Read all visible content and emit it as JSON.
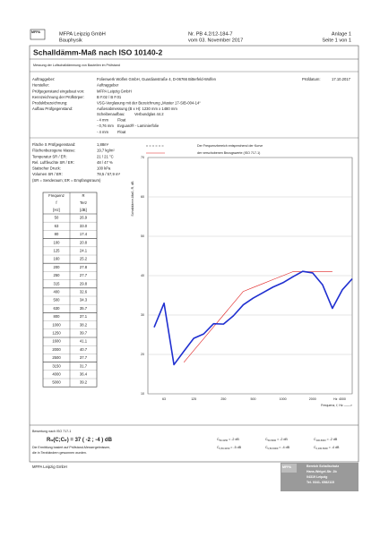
{
  "header": {
    "logo": "MFPA",
    "company": "MFPA Leipzig GmbH",
    "department": "Bauphysik",
    "report_no": "Nr. PB 4.2/12-184-7",
    "report_date": "vom 03. November 2017",
    "annex": "Anlage 1",
    "page": "Seite 1 von 1"
  },
  "title": "Schalldämm-Maß nach ISO 10140-2",
  "subtitle": "Messung der Luftschalldämmung von Bauteilen im Prüfstand",
  "info": [
    {
      "label": "Auftraggeber:",
      "value": "Folienwerk Wolfen GmbH, Guardianstraße 4, D-06766 Bitterfeld-Wolfen"
    },
    {
      "label": "Hersteller:",
      "value": "Auftraggeber"
    },
    {
      "label": "Prüfgegenstand eingebaut von:",
      "value": "MFPA Leipzig GmbH"
    },
    {
      "label": "Kennzeichnung der Prüfkörper:",
      "value": "B F.02 / B F.01"
    },
    {
      "label": "Produktbezeichnung:",
      "value": "VSG-Verglasung mit der Bezeichnung „Muster 17-SIB-004-14“"
    },
    {
      "label": "Aufbau Prüfgegenstand:",
      "value": "Außenabmessung (B x H): 1230 mm x 1480 mm"
    }
  ],
  "test_date": {
    "label": "Prüfdatum:",
    "value": "17.10.2017"
  },
  "build_up": {
    "label": "Scheibenaufbau:",
    "value": "Verbundglas 44.2",
    "layers": [
      {
        "thickness": "- 4 mm",
        "material": "Float"
      },
      {
        "thickness": "- 0,76 mm",
        "material": "Evguard® - Laminierfolie"
      },
      {
        "thickness": "- 4 mm",
        "material": "Float"
      }
    ]
  },
  "parameters": [
    {
      "label": "Fläche S Prüfgegenstand:",
      "value": "1,88m²"
    },
    {
      "label": "Flächenbezogene Masse:",
      "value": "19,7 kg/m²"
    },
    {
      "label": "Temperatur SR / ER:",
      "value": "21 / 21 °C"
    },
    {
      "label": "Rel. Luftfeuchte SR / ER:",
      "value": "48 / 47 %"
    },
    {
      "label": "Statischer Druck:",
      "value": "100 kPa"
    },
    {
      "label": "Volumen SR / ER:",
      "value": "78,5 / 57,9 m³"
    }
  ],
  "parameters_note": "(SR = Senderaum; ER = Empfangsraum)",
  "table": {
    "header": [
      [
        "Frequenz",
        "R"
      ],
      [
        "f",
        "Terz"
      ],
      [
        "[Hz]",
        "[dB]"
      ]
    ],
    "rows": [
      [
        "50",
        "26.9"
      ],
      [
        "63",
        "33.0"
      ],
      [
        "80",
        "17.4"
      ],
      [
        "100",
        "20.8"
      ],
      [
        "125",
        "24.1"
      ],
      [
        "160",
        "25.2"
      ],
      [
        "200",
        "27.8"
      ],
      [
        "250",
        "27.7"
      ],
      [
        "315",
        "29.8"
      ],
      [
        "400",
        "32.6"
      ],
      [
        "500",
        "34.3"
      ],
      [
        "630",
        "35.7"
      ],
      [
        "800",
        "37.1"
      ],
      [
        "1000",
        "38.2"
      ],
      [
        "1250",
        "39.7"
      ],
      [
        "1600",
        "41.1"
      ],
      [
        "2000",
        "40.7"
      ],
      [
        "2500",
        "37.7"
      ],
      [
        "3150",
        "31.7"
      ],
      [
        "4000",
        "36.4"
      ],
      [
        "5000",
        "39.2"
      ]
    ]
  },
  "chart_data": {
    "type": "line",
    "ylabel": "Schalldämm-Maß, R, dB",
    "xlabel": "Frequenz, f, Hz ——>",
    "x_unit": "Hz",
    "legend": [
      "Der Frequenzbereich entsprechend der Kurve",
      "der verschobenen Bezugswerte (ISO 717-1)"
    ],
    "categories": [
      null,
      "63",
      null,
      null,
      "125",
      null,
      null,
      "250",
      null,
      null,
      "500",
      null,
      null,
      "1000",
      null,
      null,
      "2000",
      null,
      null,
      "4000",
      null
    ],
    "ylim": [
      10,
      70
    ],
    "yticks": [
      10,
      20,
      30,
      40,
      50,
      60,
      70
    ],
    "grid": true,
    "series": [
      {
        "name": "Messwerte",
        "color": "#1f2fd0",
        "values": [
          26.9,
          33.0,
          17.4,
          20.8,
          24.1,
          25.2,
          27.8,
          27.7,
          29.8,
          32.6,
          34.3,
          35.7,
          37.1,
          38.2,
          39.7,
          41.1,
          40.7,
          37.7,
          31.7,
          36.4,
          39.2
        ]
      },
      {
        "name": "Bezugskurve",
        "color": "#e02020",
        "values": [
          null,
          null,
          null,
          18,
          21,
          24,
          27,
          30,
          33,
          36,
          37,
          38,
          39,
          40,
          41,
          41,
          41,
          41,
          41,
          null,
          null
        ]
      }
    ]
  },
  "rating": {
    "heading": "Bewertung nach ISO 717-1",
    "symbol": "R",
    "symbol_sub": "w",
    "open": "(C;C",
    "open_sub": "tr",
    "result": ") =  37  ( -2  ;  -4 ) dB",
    "note": [
      "Die Ermittlung basiert auf Prüfstand-Messergebnissen,",
      "die in Terzbändern gewonnen wurden."
    ],
    "terms": [
      {
        "name": "C",
        "sub": "50-3150",
        "value": "=  -2  dB"
      },
      {
        "name": "C",
        "sub": "50-5000",
        "value": "=  -2  dB"
      },
      {
        "name": "C",
        "sub": "100-5000",
        "value": "=  -2  dB"
      },
      {
        "name": "C",
        "sub": "tr,50-3150",
        "value": "=  -5  dB"
      },
      {
        "name": "C",
        "sub": "tr,50-5000",
        "value": "=  -4  dB"
      },
      {
        "name": "C",
        "sub": "tr,100-5000",
        "value": "=  -4  dB"
      }
    ]
  },
  "footer": {
    "company": "MFPA Leipzig GmbH",
    "stamp_logo": "MFPA",
    "stamp": [
      "Bereich Schallschutz",
      "Hans-Weigel-Str. 2b",
      "04319 Leipzig",
      "Tel. 0341- 6582115"
    ]
  }
}
